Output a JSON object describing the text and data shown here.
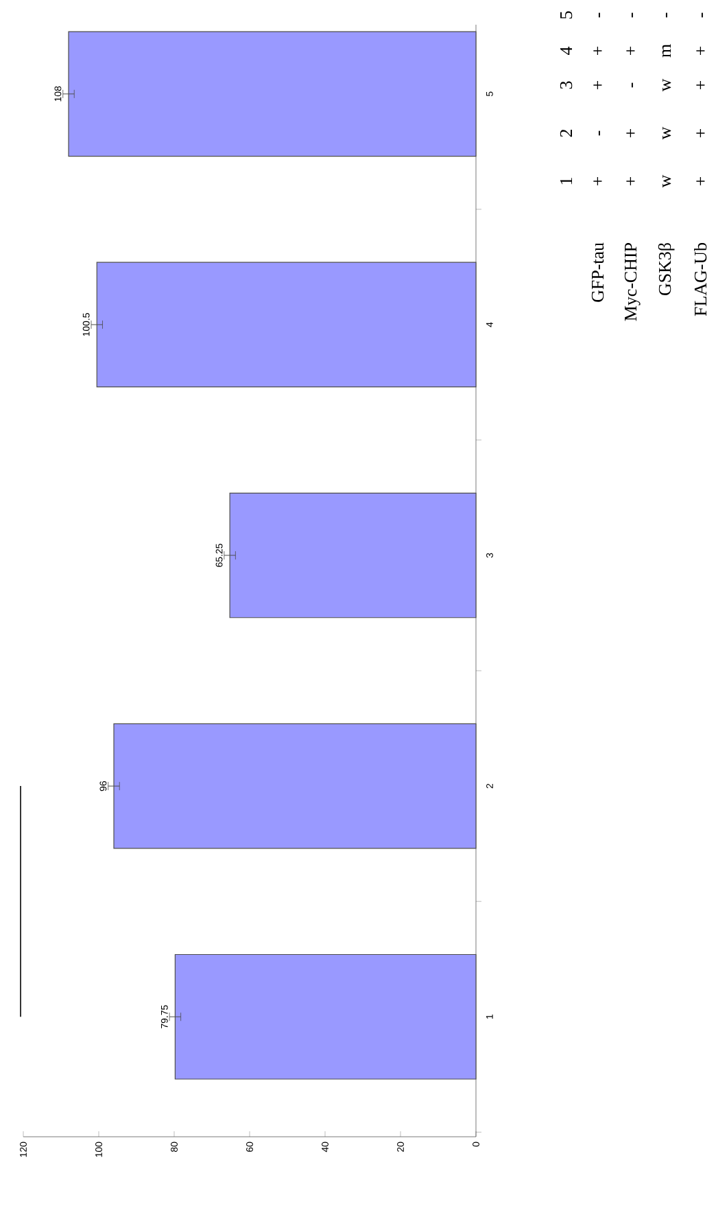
{
  "chart_data": {
    "type": "bar",
    "orientation": "horizontal",
    "categories": [
      "5",
      "4",
      "3",
      "2",
      "1"
    ],
    "values": [
      108,
      100.5,
      65.25,
      96,
      79.75
    ],
    "errors": [
      1.5,
      1.5,
      1.5,
      1.5,
      1.5
    ],
    "color": "#9999ff",
    "xlim": [
      120,
      0
    ],
    "xticks": [
      0,
      20,
      40,
      60,
      80,
      100,
      120
    ],
    "data_labels": true,
    "annotations": [
      "1",
      "2",
      "3",
      "4",
      "5",
      "GFP-tau",
      "+",
      "-",
      "+",
      "+",
      "-",
      "Myc-CHIP",
      "+",
      "+",
      "-",
      "+",
      "-",
      "GSK3β",
      "w",
      "w",
      "w",
      "m",
      "-",
      "FLAG-Ub",
      "+",
      "+",
      "+",
      "+",
      "-"
    ]
  }
}
